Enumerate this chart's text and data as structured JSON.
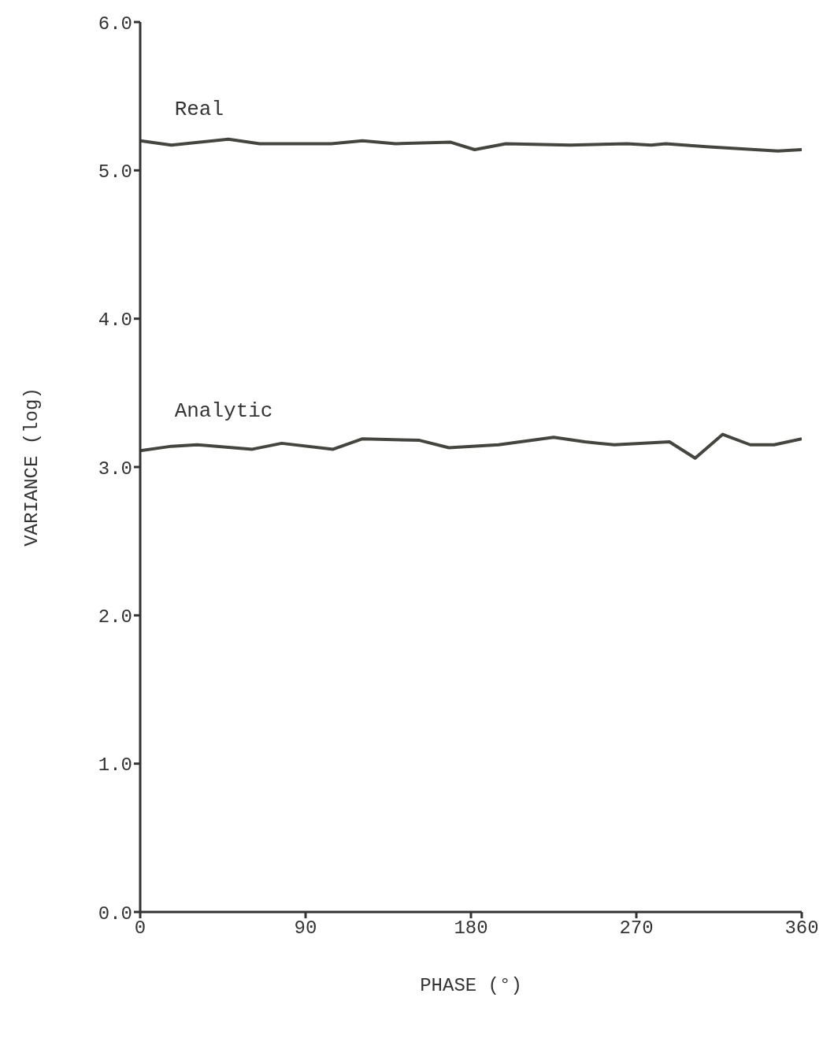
{
  "chart_data": {
    "type": "line",
    "xlabel": "PHASE (°)",
    "ylabel": "VARIANCE (log)",
    "xlim": [
      0,
      360
    ],
    "xticks": [
      0,
      90,
      180,
      270,
      360
    ],
    "ylim": [
      0,
      6
    ],
    "yticks": [
      {
        "value": 0,
        "label": "0.0"
      },
      {
        "value": 1,
        "label": "1.0"
      },
      {
        "value": 2,
        "label": "2.0"
      },
      {
        "value": 3,
        "label": "3.0"
      },
      {
        "value": 4,
        "label": "4.0"
      },
      {
        "value": 5,
        "label": "5.0"
      },
      {
        "value": 6,
        "label": "6.0"
      }
    ],
    "grid": false,
    "legend": false,
    "marker": "none",
    "line_style": "solid",
    "series": [
      {
        "name": "Real",
        "color": "#45453f",
        "x": [
          0,
          17,
          48,
          65,
          104,
          121,
          139,
          169,
          182,
          199,
          234,
          265,
          278,
          286,
          308,
          347,
          360
        ],
        "values": [
          5.2,
          5.17,
          5.21,
          5.18,
          5.18,
          5.2,
          5.18,
          5.19,
          5.14,
          5.18,
          5.17,
          5.18,
          5.17,
          5.18,
          5.16,
          5.13,
          5.14
        ]
      },
      {
        "name": "Analytic",
        "color": "#45453f",
        "x": [
          0,
          17,
          31,
          61,
          77,
          105,
          121,
          152,
          168,
          195,
          225,
          242,
          258,
          288,
          302,
          317,
          332,
          345,
          360
        ],
        "values": [
          3.11,
          3.14,
          3.15,
          3.12,
          3.16,
          3.12,
          3.19,
          3.18,
          3.13,
          3.15,
          3.2,
          3.17,
          3.15,
          3.17,
          3.06,
          3.22,
          3.15,
          3.15,
          3.19
        ]
      }
    ]
  }
}
